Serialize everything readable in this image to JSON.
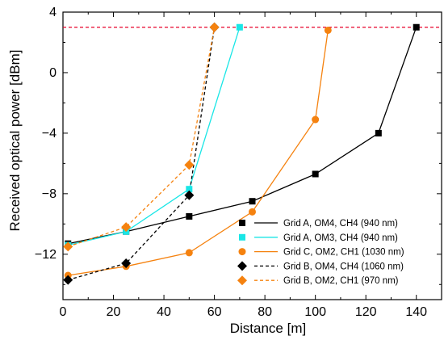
{
  "chart_data": {
    "type": "line",
    "xlabel": "Distance [m]",
    "ylabel": "Received optical power [dBm]",
    "xlim": [
      0,
      150
    ],
    "ylim": [
      -15,
      4
    ],
    "xticks": [
      0,
      20,
      40,
      60,
      80,
      100,
      120,
      140
    ],
    "yticks": [
      -12,
      -8,
      -4,
      0,
      4
    ],
    "grid": false,
    "legend_position": "bottom-right",
    "reference_line": {
      "y": 3.0,
      "style": "dashed",
      "color": "#e8002a"
    },
    "series": [
      {
        "name": "Grid A, OM4, CH4 (940 nm)",
        "color": "#000000",
        "line_style": "solid",
        "marker": "square",
        "x": [
          2,
          25,
          50,
          75,
          100,
          125,
          140
        ],
        "y": [
          -11.3,
          -10.5,
          -9.5,
          -8.5,
          -6.7,
          -4.0,
          3.0
        ]
      },
      {
        "name": "Grid A, OM3, CH4 (940 nm)",
        "color": "#19e6e6",
        "line_style": "solid",
        "marker": "square",
        "x": [
          2,
          25,
          50,
          70
        ],
        "y": [
          -11.4,
          -10.5,
          -7.7,
          3.0
        ]
      },
      {
        "name": "Grid C, OM2, CH1 (1030 nm)",
        "color": "#f5820f",
        "line_style": "solid",
        "marker": "circle",
        "x": [
          2,
          25,
          50,
          75,
          100,
          105
        ],
        "y": [
          -13.4,
          -12.8,
          -11.9,
          -9.2,
          -3.1,
          2.8
        ]
      },
      {
        "name": "Grid B, OM4, CH4 (1060 nm)",
        "color": "#000000",
        "line_style": "dashed",
        "marker": "diamond",
        "x": [
          2,
          25,
          50,
          60
        ],
        "y": [
          -13.7,
          -12.6,
          -8.1,
          3.0
        ]
      },
      {
        "name": "Grid B, OM2, CH1 (970 nm)",
        "color": "#f5820f",
        "line_style": "dashed",
        "marker": "diamond",
        "x": [
          2,
          25,
          50,
          60
        ],
        "y": [
          -11.5,
          -10.2,
          -6.1,
          3.0
        ]
      }
    ]
  }
}
